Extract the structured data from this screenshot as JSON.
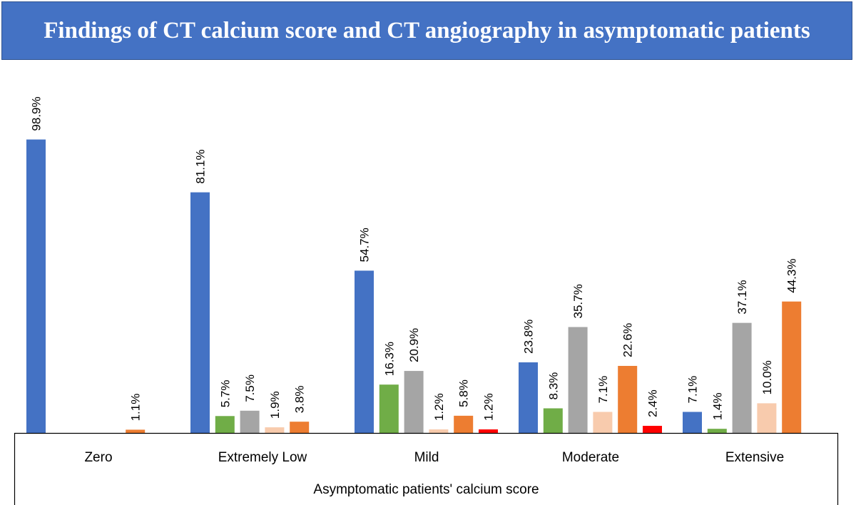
{
  "chart_data": {
    "type": "bar",
    "title": "Findings of CT calcium score and CT angiography in asymptomatic patients",
    "xlabel": "Asymptomatic patients' calcium score",
    "categories": [
      "Zero",
      "Extremely Low",
      "Mild",
      "Moderate",
      "Extensive"
    ],
    "ylim": [
      0,
      100
    ],
    "grid": false,
    "legend": "none",
    "series": [
      {
        "color": "#4472c4",
        "values": [
          98.9,
          81.1,
          54.7,
          23.8,
          7.1
        ],
        "labels": [
          "98.9%",
          "81.1%",
          "54.7%",
          "23.8%",
          "7.1%"
        ]
      },
      {
        "color": "#70ad47",
        "values": [
          null,
          5.7,
          16.3,
          8.3,
          1.4
        ],
        "labels": [
          "",
          "5.7%",
          "16.3%",
          "8.3%",
          "1.4%"
        ]
      },
      {
        "color": "#a5a5a5",
        "values": [
          null,
          7.5,
          20.9,
          35.7,
          37.1
        ],
        "labels": [
          "",
          "7.5%",
          "20.9%",
          "35.7%",
          "37.1%"
        ]
      },
      {
        "color": "#f8cbad",
        "values": [
          null,
          1.9,
          1.2,
          7.1,
          10.0
        ],
        "labels": [
          "",
          "1.9%",
          "1.2%",
          "7.1%",
          "10.0%"
        ]
      },
      {
        "color": "#ed7d31",
        "values": [
          1.1,
          3.8,
          5.8,
          22.6,
          44.3
        ],
        "labels": [
          "1.1%",
          "3.8%",
          "5.8%",
          "22.6%",
          "44.3%"
        ]
      },
      {
        "color": "#ff0000",
        "values": [
          null,
          null,
          1.2,
          2.4,
          null
        ],
        "labels": [
          "",
          "",
          "1.2%",
          "2.4%",
          ""
        ]
      }
    ]
  }
}
